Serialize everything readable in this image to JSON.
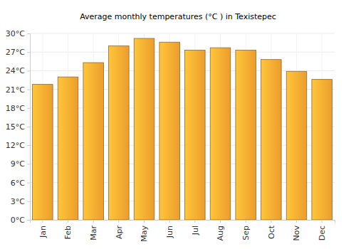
{
  "chart_data": {
    "type": "bar",
    "title": "Average monthly temperatures (°C ) in Texistepec",
    "categories": [
      "Jan",
      "Feb",
      "Mar",
      "Apr",
      "May",
      "Jun",
      "Jul",
      "Aug",
      "Sep",
      "Oct",
      "Nov",
      "Dec"
    ],
    "values": [
      21.8,
      23.0,
      25.3,
      28.0,
      29.2,
      28.6,
      27.3,
      27.7,
      27.3,
      25.8,
      23.9,
      22.6
    ],
    "color": "#f9a630",
    "ylim": [
      0,
      30
    ],
    "yticks": [
      {
        "value": 0,
        "label": "0°C"
      },
      {
        "value": 3,
        "label": "3°C"
      },
      {
        "value": 6,
        "label": "6°C"
      },
      {
        "value": 9,
        "label": "9°C"
      },
      {
        "value": 12,
        "label": "12°C"
      },
      {
        "value": 15,
        "label": "15°C"
      },
      {
        "value": 18,
        "label": "18°C"
      },
      {
        "value": 21,
        "label": "21°C"
      },
      {
        "value": 24,
        "label": "24°C"
      },
      {
        "value": 27,
        "label": "27°C"
      },
      {
        "value": 30,
        "label": "30°C"
      }
    ],
    "grid": true
  }
}
